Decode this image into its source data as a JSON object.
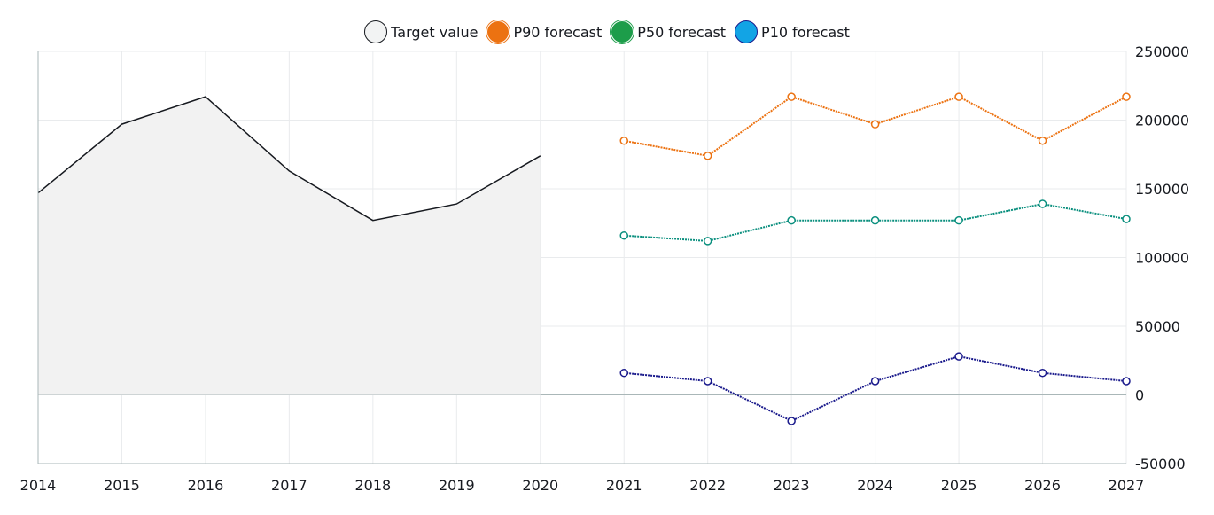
{
  "chart_data": {
    "type": "line",
    "legend_placement": "top-center",
    "grid": true,
    "x": [
      2014,
      2015,
      2016,
      2017,
      2018,
      2019,
      2020,
      2021,
      2022,
      2023,
      2024,
      2025,
      2026,
      2027
    ],
    "xlim": [
      2014,
      2027
    ],
    "ylim": [
      -50000,
      250000
    ],
    "yticks": [
      -50000,
      0,
      50000,
      100000,
      150000,
      200000,
      250000
    ],
    "ytick_labels": [
      "-50000",
      "0",
      "50000",
      "100000",
      "150000",
      "200000",
      "250000"
    ],
    "y_axis_side": "right",
    "series": [
      {
        "name": "Target value",
        "color": "#16191f",
        "fill": "#f2f2f2",
        "style": "solid-area",
        "x": [
          2014,
          2015,
          2016,
          2017,
          2018,
          2019,
          2020
        ],
        "values": [
          147000,
          197000,
          217000,
          163000,
          127000,
          139000,
          174000
        ]
      },
      {
        "name": "P90 forecast",
        "color": "#ec7211",
        "style": "dotted-markers",
        "x": [
          2021,
          2022,
          2023,
          2024,
          2025,
          2026,
          2027
        ],
        "values": [
          185000,
          174000,
          217000,
          197000,
          217000,
          185000,
          217000
        ]
      },
      {
        "name": "P50 forecast",
        "color": "#1d8102",
        "line_color": "#0a8f7e",
        "style": "dotted-markers",
        "x": [
          2021,
          2022,
          2023,
          2024,
          2025,
          2026,
          2027
        ],
        "values": [
          116000,
          112000,
          127000,
          127000,
          127000,
          139000,
          128000
        ]
      },
      {
        "name": "P10 forecast",
        "color": "#0073bb",
        "line_color": "#1a1a8c",
        "style": "dotted-markers",
        "x": [
          2021,
          2022,
          2023,
          2024,
          2025,
          2026,
          2027
        ],
        "values": [
          16000,
          10000,
          -19000,
          10000,
          28000,
          16000,
          10000
        ]
      }
    ]
  }
}
